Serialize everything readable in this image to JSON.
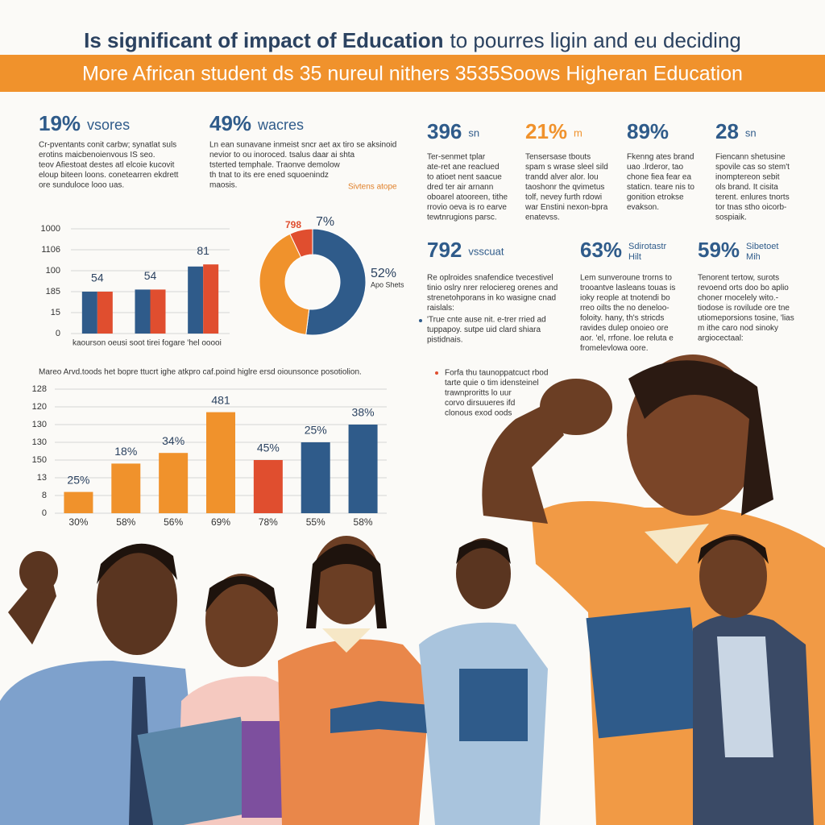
{
  "header": {
    "title_bold": "Is significant of impact of Education",
    "title_rest": "to pourres ligin and eu deciding",
    "banner": "More African student ds 35 nureul nithers 3535Soows Higheran Education"
  },
  "stats": [
    {
      "value": "19%",
      "label": "vsores",
      "color": "#2f5b8a",
      "body": [
        "Cr-pventants conit carbw; synatlat suls",
        "erotins maicbenoienvous IS seo.",
        "teov Afiestoat destes atl elcoie kucovit",
        "eloup biteen loons. conetearren ekdrett",
        "ore sunduloce looo uas."
      ]
    },
    {
      "value": "49%",
      "label": "wacres",
      "color": "#2f5b8a",
      "body": [
        "Ln ean sunavane inmeist sncr aet ax tiro se aksinoid",
        "nevior to ou inoroced. tsalus daar ai shta",
        "tsterted temphale. Traonve demolow",
        "th tnat to its ere ened squoenindz",
        "maosis."
      ]
    },
    {
      "value": "396",
      "label": "sn",
      "color": "#2f5b8a",
      "body": [
        "Ter-senmet tplar",
        "ate-ret ane reaclued",
        "to atioet nent saacue",
        "dred ter air arnann",
        "oboarel atooreen, tithe",
        "rrovio oeva is ro earve",
        "tewtnrugions parsc."
      ]
    },
    {
      "value": "21%",
      "label": "m",
      "color": "#f0922c",
      "body": [
        "Tensersase tbouts",
        "spam s wrase sleel sild",
        "trandd alver alor. lou",
        "taoshonr the qvimetus",
        "tolf, nevey furth rdowi",
        "war Enstini nexon-bpra",
        "enatevss."
      ]
    },
    {
      "value": "89%",
      "label": "",
      "color": "#2f5b8a",
      "body": [
        "Fkenng ates brand",
        "uao .lrderor, tao",
        "chone fiea fear ea",
        "staticn. teare nis to",
        "gonition etrokse",
        "evakson."
      ]
    },
    {
      "value": "28",
      "label": "sn",
      "color": "#2f5b8a",
      "body": [
        "Fiencann shetusine",
        "spovile cas so stem't",
        "inomptereon sebit",
        "ols brand. It cisita",
        "terent. enlures tnorts",
        "tor tnas stho oicorb-",
        "sospiaik."
      ]
    },
    {
      "value": "792",
      "label": "vsscuat",
      "color": "#2f5b8a",
      "body": [
        "Re oplroides snafendice tvecestivel",
        "tinio oslry nrer relociereg orenes and",
        "strenetohporans in ko wasigne cnad",
        "raislals:"
      ]
    },
    {
      "value": "63%",
      "label": "Sdirotastr",
      "label2": "Hilt",
      "color": "#2f5b8a",
      "body": [
        "Lem sunveroune trorns to",
        "trooantve lasleans touas is",
        "ioky reople at tnotendi bo",
        "rreo oilts the no deneloo-",
        "foloity. hany, th's stricds",
        "ravides dulep onoieo ore",
        "aor. 'el, rrfone. loe reluta e",
        "fromelevlowa oore."
      ]
    },
    {
      "value": "59%",
      "label": "Sibetoet",
      "label2": "Mih",
      "color": "#2f5b8a",
      "body": [
        "Tenorent tertow, surots",
        "revoend orts doo bo aplio",
        "choner rnocelely wito.-",
        "tiodose is rovilude ore tne",
        "utiomeporsions tosine, 'lias",
        "m ithe caro nod sinoky",
        "argiocectaal:"
      ]
    }
  ],
  "notes": {
    "side_tag": "Sivtens atope",
    "bullet_top": [
      "'True cnte ause nit. e-trer rried ad",
      "tuppapoy. sutpe uid clard shiara",
      "pistidnais."
    ],
    "bullet_mid": [
      "Forfa thu taunoppatcuct rbod",
      "tarte quie o tim idensteinel",
      "trawnproritts lo uur",
      "corvo dirsuueres ifd",
      "clonous exod oods"
    ]
  },
  "chart_data": [
    {
      "type": "bar",
      "caption": "kaourson oeusi soot tirei fogare 'hel ooooi",
      "ylim": [
        0,
        5
      ],
      "yticks": [
        {
          "value": 0,
          "label": "0"
        },
        {
          "value": 1,
          "label": "15"
        },
        {
          "value": 2,
          "label": "185"
        },
        {
          "value": 3,
          "label": "100"
        },
        {
          "value": 4,
          "label": "1106"
        },
        {
          "value": 5,
          "label": "1000"
        }
      ],
      "grid": true,
      "series": [
        {
          "color": "#2f5b8a",
          "values": [
            2.0,
            2.1,
            3.2
          ]
        },
        {
          "color": "#e04e2f",
          "values": [
            2.0,
            2.1,
            3.3
          ]
        }
      ],
      "annotations": [
        "54",
        "54",
        "81"
      ]
    },
    {
      "type": "donut",
      "values": [
        52,
        41,
        7
      ],
      "colors": [
        "#2f5b8a",
        "#f0922c",
        "#e04e2f"
      ],
      "value_labels": [
        "52%",
        null,
        "7%"
      ],
      "annotations": [
        "798",
        "Apo Shets"
      ]
    },
    {
      "type": "bar",
      "title": "Mareo Arvd.toods het bopre ttucrt ighe atkpro caf.poind higlre ersd oiounsonce posotiolion.",
      "categories": [
        "30%",
        "58%",
        "56%",
        "69%",
        "78%",
        "55%",
        "58%"
      ],
      "values": [
        1.2,
        2.8,
        3.4,
        5.7,
        3.0,
        4.0,
        5.0
      ],
      "colors": [
        "#f0922c",
        "#f0922c",
        "#f0922c",
        "#f0922c",
        "#e04e2f",
        "#2f5b8a",
        "#2f5b8a"
      ],
      "ylim": [
        0,
        7
      ],
      "yticks": [
        {
          "value": 0,
          "label": "0"
        },
        {
          "value": 1,
          "label": "8"
        },
        {
          "value": 2,
          "label": "13"
        },
        {
          "value": 3,
          "label": "150"
        },
        {
          "value": 4,
          "label": "130"
        },
        {
          "value": 5,
          "label": "130"
        },
        {
          "value": 6,
          "label": "120"
        },
        {
          "value": 7,
          "label": "128"
        }
      ],
      "grid": true,
      "annotations": [
        "25%",
        "18%",
        "34%",
        "481",
        "45%",
        "25%",
        "38%"
      ]
    }
  ]
}
